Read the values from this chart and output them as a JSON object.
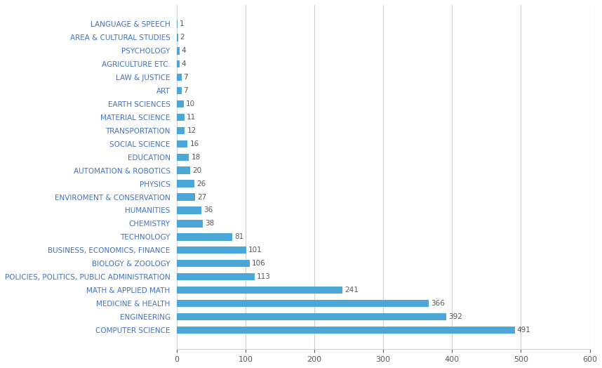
{
  "categories": [
    "LANGUAGE & SPEECH",
    "AREA & CULTURAL STUDIES",
    "PSYCHOLOGY",
    "AGRICULTURE ETC.",
    "LAW & JUSTICE",
    "ART",
    "EARTH SCIENCES",
    "MATERIAL SCIENCE",
    "TRANSPORTATION",
    "SOCIAL SCIENCE",
    "EDUCATION",
    "AUTOMATION & ROBOTICS",
    "PHYSICS",
    "ENVIROMENT & CONSERVATION",
    "HUMANITIES",
    "CHEMISTRY",
    "TECHNOLOGY",
    "BUSINESS, ECONOMICS, FINANCE",
    "BIOLOGY & ZOOLOGY",
    "POLICIES, POLITICS, PUBLIC ADMINISTRATION",
    "MATH & APPLIED MATH",
    "MEDICINE & HEALTH",
    "ENGINEERING",
    "COMPUTER SCIENCE"
  ],
  "values": [
    1,
    2,
    4,
    4,
    7,
    7,
    10,
    11,
    12,
    16,
    18,
    20,
    26,
    27,
    36,
    38,
    81,
    101,
    106,
    113,
    241,
    366,
    392,
    491
  ],
  "bar_color": "#4da6d8",
  "label_color": "#4472c4",
  "value_color": "#595959",
  "background_color": "#ffffff",
  "grid_color": "#d0d0d0",
  "xlim": [
    0,
    600
  ],
  "xticks": [
    0,
    100,
    200,
    300,
    400,
    500,
    600
  ],
  "bar_height": 0.55,
  "figsize": [
    8.58,
    5.24
  ],
  "dpi": 100
}
